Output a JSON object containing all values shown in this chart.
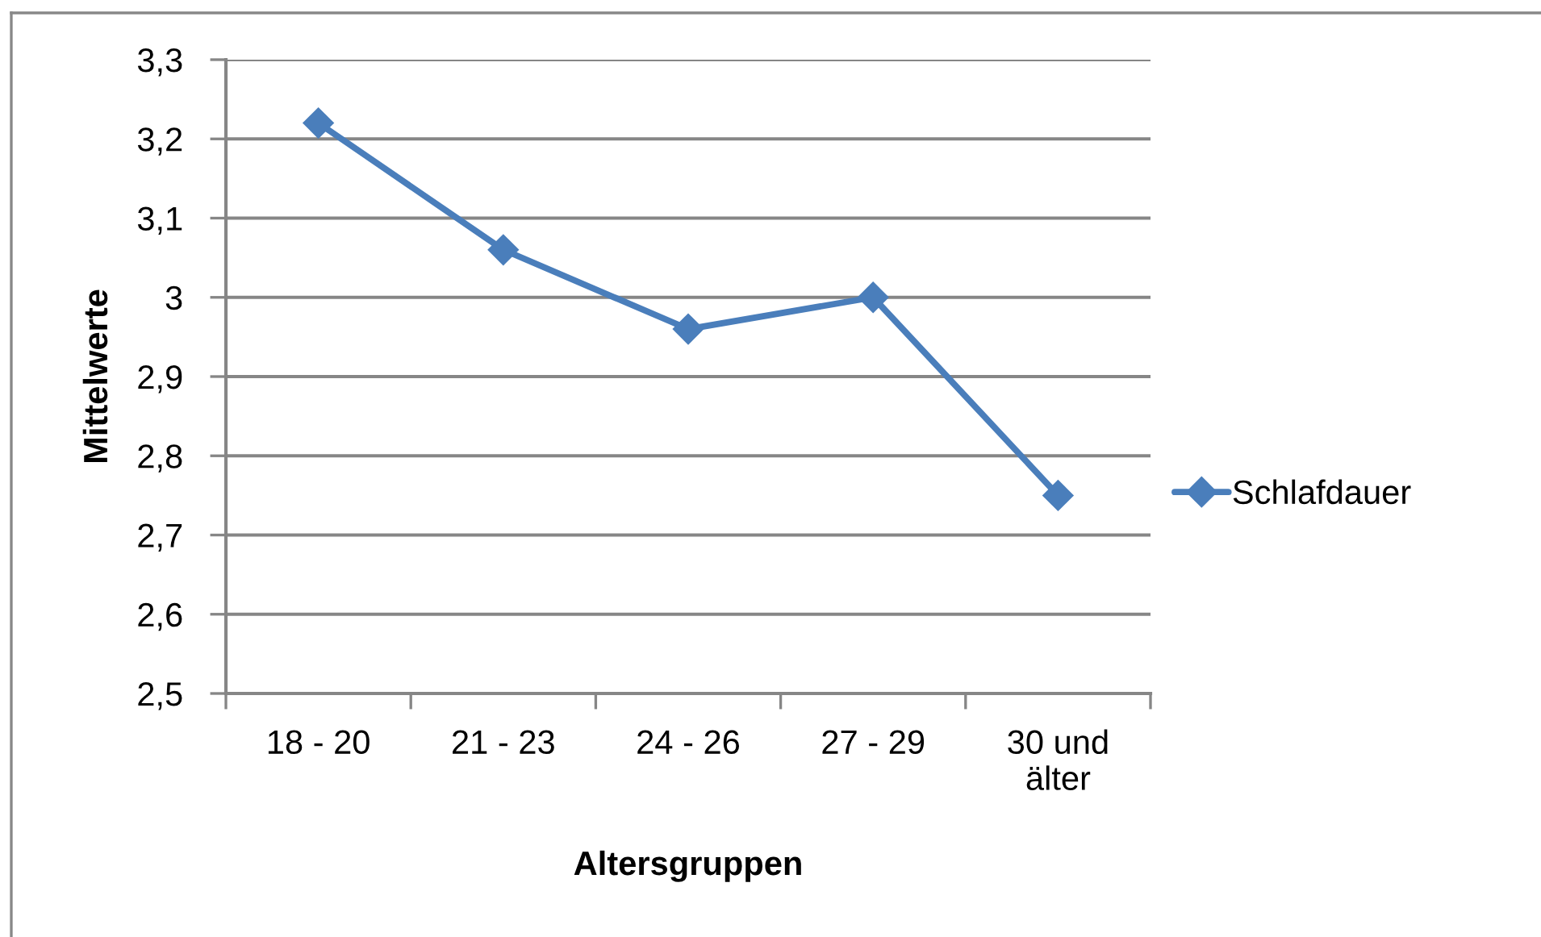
{
  "chart_data": {
    "type": "line",
    "xlabel": "Altersgruppen",
    "ylabel": "Mittelwerte",
    "categories": [
      "18 - 20",
      "21 - 23",
      "24 - 26",
      "27 - 29",
      "30 und\nälter"
    ],
    "series": [
      {
        "name": "Schlafdauer",
        "color": "#4a7ebb",
        "values": [
          3.22,
          3.06,
          2.96,
          3.0,
          2.75
        ]
      }
    ],
    "ylim": [
      2.5,
      3.3
    ],
    "yticks": [
      {
        "value": 2.5,
        "label": "2,5"
      },
      {
        "value": 2.6,
        "label": "2,6"
      },
      {
        "value": 2.7,
        "label": "2,7"
      },
      {
        "value": 2.8,
        "label": "2,8"
      },
      {
        "value": 2.9,
        "label": "2,9"
      },
      3,
      {
        "value": 3.1,
        "label": "3,1"
      },
      {
        "value": 3.2,
        "label": "3,2"
      },
      {
        "value": 3.3,
        "label": "3,3"
      }
    ],
    "grid": "y",
    "legend": "right",
    "marker": "diamond",
    "line_style": "solid"
  }
}
